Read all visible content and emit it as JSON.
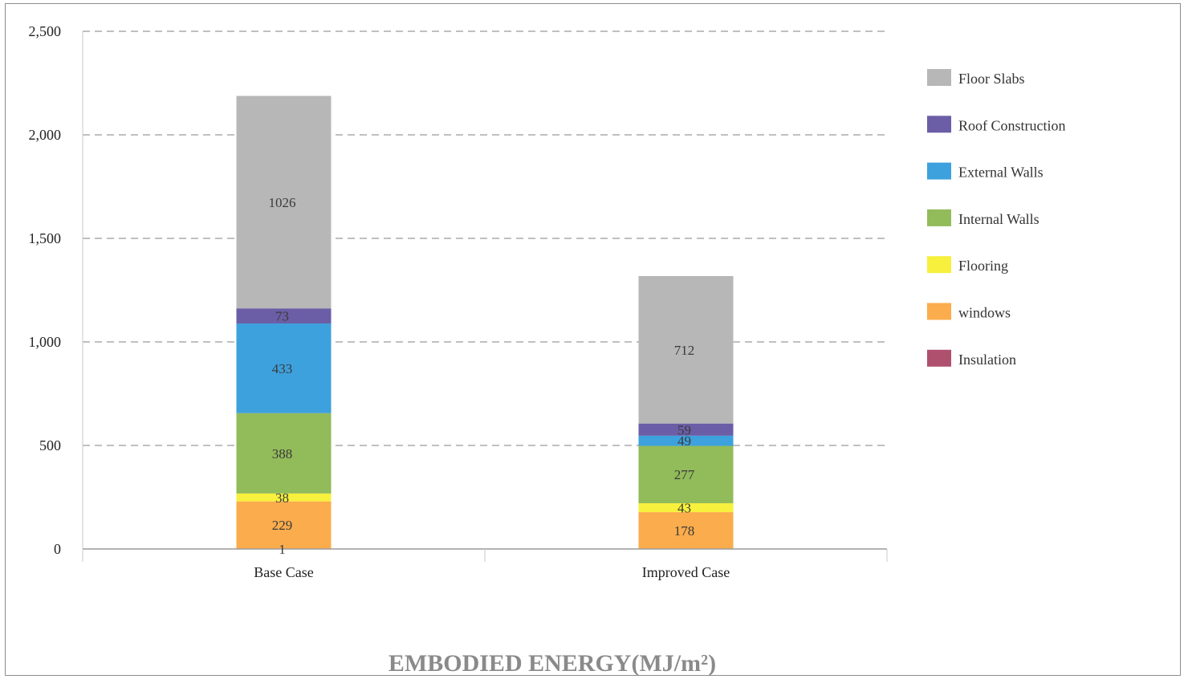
{
  "chart_data": {
    "type": "bar",
    "stacked": true,
    "title": "EMBODIED ENERGY(MJ/m²)",
    "categories": [
      "Base Case",
      "Improved Case"
    ],
    "ylim": [
      0,
      2500
    ],
    "y_ticks": [
      0,
      500,
      1000,
      1500,
      2000,
      2500
    ],
    "y_tick_labels": [
      "0",
      "500",
      "1,000",
      "1,500",
      "2,000",
      "2,500"
    ],
    "grid": true,
    "legend_position": "right",
    "series": [
      {
        "name": "Insulation",
        "color": "#b0506f",
        "values": [
          1,
          0
        ],
        "labels": [
          "1",
          ""
        ]
      },
      {
        "name": "windows",
        "color": "#fbac4c",
        "values": [
          229,
          178
        ],
        "labels": [
          "229",
          "178"
        ]
      },
      {
        "name": "Flooring",
        "color": "#f7f03c",
        "values": [
          38,
          43
        ],
        "labels": [
          "38",
          "43"
        ]
      },
      {
        "name": "Internal Walls",
        "color": "#92bb5a",
        "values": [
          388,
          277
        ],
        "labels": [
          "388",
          "277"
        ]
      },
      {
        "name": "External Walls",
        "color": "#3ca1dd",
        "values": [
          433,
          49
        ],
        "labels": [
          "433",
          "49"
        ]
      },
      {
        "name": "Roof Construction",
        "color": "#6b5ea6",
        "values": [
          73,
          59
        ],
        "labels": [
          "73",
          "59"
        ]
      },
      {
        "name": "Floor Slabs",
        "color": "#b7b7b7",
        "values": [
          1026,
          712
        ],
        "labels": [
          "1026",
          "712"
        ]
      }
    ],
    "legend_order": [
      "Floor Slabs",
      "Roof Construction",
      "External Walls",
      "Internal Walls",
      "Flooring",
      "windows",
      "Insulation"
    ]
  }
}
